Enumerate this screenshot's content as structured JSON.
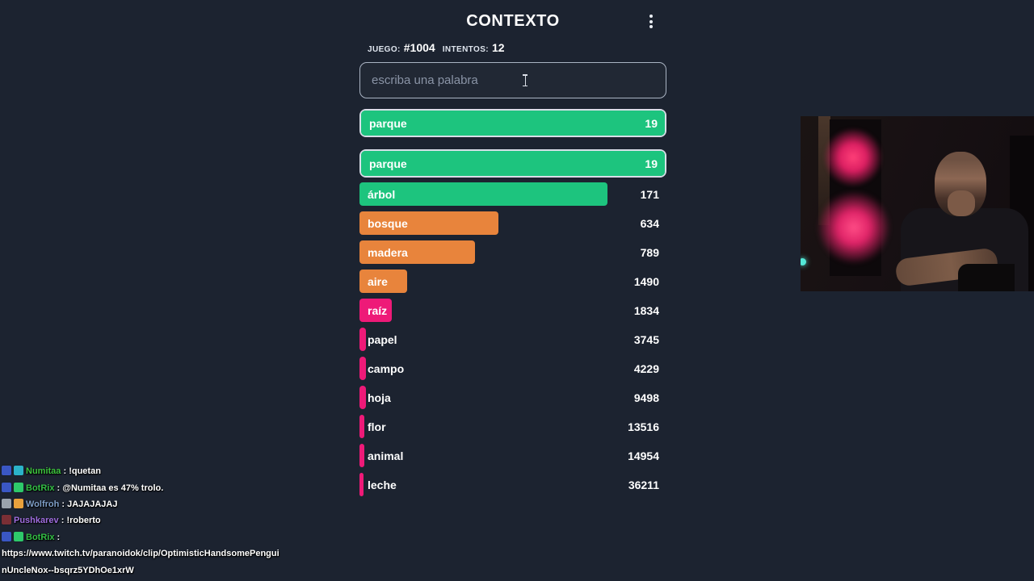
{
  "app": {
    "title": "CONTEXTO"
  },
  "game": {
    "game_label": "JUEGO:",
    "game_number": "#1004",
    "attempts_label": "INTENTOS:",
    "attempts_value": "12",
    "input_placeholder": "escriba una palabra"
  },
  "colors": {
    "background": "#1c2330",
    "green": "#1dc47e",
    "orange": "#e8843c",
    "pink": "#ee1a78",
    "highlight_border": "#d9dee8"
  },
  "last_guess": {
    "word": "parque",
    "value": "19",
    "color": "green",
    "width_pct": 100,
    "highlight": true
  },
  "guesses": [
    {
      "word": "parque",
      "value": "19",
      "color": "green",
      "width_pct": 100,
      "highlight": true
    },
    {
      "word": "árbol",
      "value": "171",
      "color": "green",
      "width_pct": 80.7
    },
    {
      "word": "bosque",
      "value": "634",
      "color": "orange",
      "width_pct": 45.2
    },
    {
      "word": "madera",
      "value": "789",
      "color": "orange",
      "width_pct": 37.6
    },
    {
      "word": "aire",
      "value": "1490",
      "color": "orange",
      "width_pct": 15.6
    },
    {
      "word": "raíz",
      "value": "1834",
      "color": "pink",
      "width_pct": 10.6
    },
    {
      "word": "papel",
      "value": "3745",
      "color": "pink",
      "width_pct": 2.2
    },
    {
      "word": "campo",
      "value": "4229",
      "color": "pink",
      "width_pct": 2.2
    },
    {
      "word": "hoja",
      "value": "9498",
      "color": "pink",
      "width_pct": 2.0
    },
    {
      "word": "flor",
      "value": "13516",
      "color": "pink",
      "width_pct": 1.7
    },
    {
      "word": "animal",
      "value": "14954",
      "color": "pink",
      "width_pct": 1.7
    },
    {
      "word": "leche",
      "value": "36211",
      "color": "pink",
      "width_pct": 1.4
    }
  ],
  "chat": {
    "lines": [
      {
        "badges": [
          "#3a57c4",
          "#2bb3c9"
        ],
        "user": "Numitaa",
        "user_color": "#3dc33d",
        "sep": ":",
        "text": "!quetan"
      },
      {
        "badges": [
          "#3a57c4",
          "#2ec96a"
        ],
        "user": "BotRix",
        "user_color": "#33bf45",
        "sep": ":",
        "text": "@Numitaa es 47% trolo."
      },
      {
        "badges": [
          "#9aa3ad",
          "#e8a13c"
        ],
        "user": "Wolfroh",
        "user_color": "#7f9fc9",
        "sep": ":",
        "text": "JAJAJAJAJ"
      },
      {
        "badges": [
          "#7a2f35"
        ],
        "user": "Pushkarev",
        "user_color": "#a06ee0",
        "sep": ":",
        "text": "!roberto"
      },
      {
        "badges": [
          "#3a57c4",
          "#2ec96a"
        ],
        "user": "BotRix",
        "user_color": "#33bf45",
        "sep": ":",
        "text": ""
      },
      {
        "text": "https://www.twitch.tv/paranoidok/clip/OptimisticHandsomePengui"
      },
      {
        "text": "nUncleNox--bsqrz5YDhOe1xrW"
      }
    ]
  }
}
